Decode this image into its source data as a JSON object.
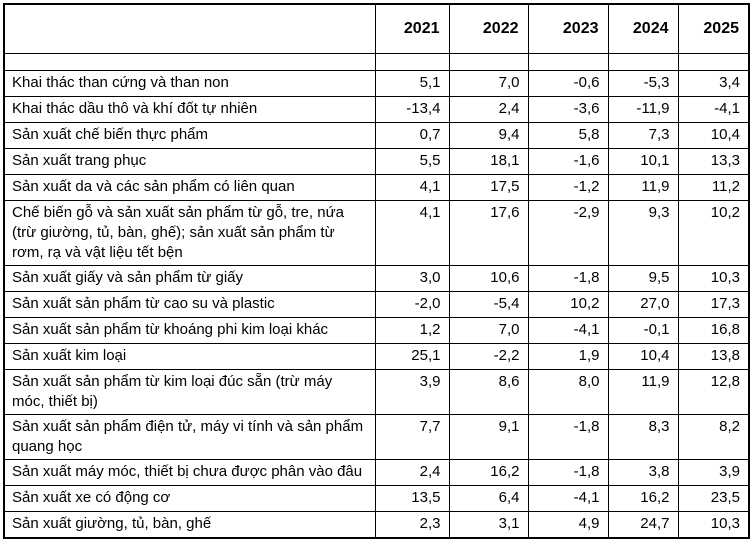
{
  "table": {
    "header": {
      "label": "",
      "years": [
        "2021",
        "2022",
        "2023",
        "2024",
        "2025"
      ]
    },
    "rows": [
      {
        "spacer": true,
        "label": "",
        "values": [
          "",
          "",
          "",
          "",
          ""
        ]
      },
      {
        "label": "Khai thác than cứng và than non",
        "values": [
          "5,1",
          "7,0",
          "-0,6",
          "-5,3",
          "3,4"
        ]
      },
      {
        "label": "Khai thác dầu thô và khí đốt tự nhiên",
        "values": [
          "-13,4",
          "2,4",
          "-3,6",
          "-11,9",
          "-4,1"
        ]
      },
      {
        "label": "Sản xuất chế biến thực phẩm",
        "values": [
          "0,7",
          "9,4",
          "5,8",
          "7,3",
          "10,4"
        ]
      },
      {
        "label": "Sản xuất trang phục",
        "values": [
          "5,5",
          "18,1",
          "-1,6",
          "10,1",
          "13,3"
        ]
      },
      {
        "label": "Sản xuất da và các sản phẩm có liên quan",
        "values": [
          "4,1",
          "17,5",
          "-1,2",
          "11,9",
          "11,2"
        ]
      },
      {
        "label": "Chế biến gỗ và sản xuất sản phẩm từ gỗ, tre, nứa (trừ giường, tủ, bàn, ghế); sản xuất sản phẩm từ rơm, rạ và vật liệu tết bện",
        "values": [
          "4,1",
          "17,6",
          "-2,9",
          "9,3",
          "10,2"
        ]
      },
      {
        "label": "Sản xuất giấy và sản phẩm từ giấy",
        "values": [
          "3,0",
          "10,6",
          "-1,8",
          "9,5",
          "10,3"
        ]
      },
      {
        "label": "Sản xuất sản phẩm từ cao su và plastic",
        "values": [
          "-2,0",
          "-5,4",
          "10,2",
          "27,0",
          "17,3"
        ]
      },
      {
        "label": "Sản xuất sản phẩm từ khoáng phi kim loại khác",
        "values": [
          "1,2",
          "7,0",
          "-4,1",
          "-0,1",
          "16,8"
        ]
      },
      {
        "label": "Sản xuất kim loại",
        "values": [
          "25,1",
          "-2,2",
          "1,9",
          "10,4",
          "13,8"
        ]
      },
      {
        "label": "Sản xuất sản phẩm từ kim loại đúc sẵn (trừ máy móc, thiết bị)",
        "values": [
          "3,9",
          "8,6",
          "8,0",
          "11,9",
          "12,8"
        ]
      },
      {
        "label": "Sản xuất sản phẩm điện tử, máy vi tính và sản phẩm quang học",
        "values": [
          "7,7",
          "9,1",
          "-1,8",
          "8,3",
          "8,2"
        ]
      },
      {
        "label": "Sản xuất máy móc, thiết bị chưa được phân vào đâu",
        "values": [
          "2,4",
          "16,2",
          "-1,8",
          "3,8",
          "3,9"
        ]
      },
      {
        "label": "Sản xuất xe có động cơ",
        "values": [
          "13,5",
          "6,4",
          "-4,1",
          "16,2",
          "23,5"
        ]
      },
      {
        "label": "Sản xuất giường, tủ, bàn, ghế",
        "values": [
          "2,3",
          "3,1",
          "4,9",
          "24,7",
          "10,3"
        ]
      }
    ]
  }
}
